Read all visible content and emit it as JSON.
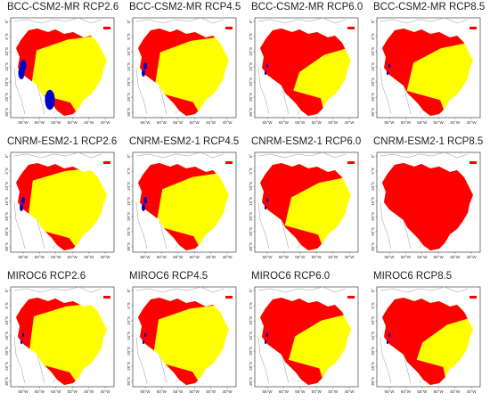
{
  "figure": {
    "panels": [
      {
        "title": "BCC-CSM2-MR RCP2.6",
        "red": 0.35,
        "blue": "high"
      },
      {
        "title": "BCC-CSM2-MR RCP4.5",
        "red": 0.38,
        "blue": "mid"
      },
      {
        "title": "BCC-CSM2-MR RCP6.0",
        "red": 0.7,
        "blue": "low"
      },
      {
        "title": "BCC-CSM2-MR RCP8.5",
        "red": 0.55,
        "blue": "low"
      },
      {
        "title": "CNRM-ESM2-1 RCP2.6",
        "red": 0.28,
        "blue": "mid"
      },
      {
        "title": "CNRM-ESM2-1 RCP4.5",
        "red": 0.42,
        "blue": "mid"
      },
      {
        "title": "CNRM-ESM2-1 RCP6.0",
        "red": 0.55,
        "blue": "low"
      },
      {
        "title": "CNRM-ESM2-1 RCP8.5",
        "red": 0.98,
        "blue": "none"
      },
      {
        "title": "MIROC6 RCP2.6",
        "red": 0.3,
        "blue": "low"
      },
      {
        "title": "MIROC6 RCP4.5",
        "red": 0.35,
        "blue": "low"
      },
      {
        "title": "MIROC6 RCP6.0",
        "red": 0.62,
        "blue": "low"
      },
      {
        "title": "MIROC6 RCP8.5",
        "red": 0.72,
        "blue": "low"
      }
    ],
    "x_ticks": [
      "65°W",
      "60°W",
      "55°W",
      "50°W",
      "45°W",
      "40°W"
    ],
    "y_ticks": [
      "0°",
      "5°S",
      "10°S",
      "15°S",
      "20°S",
      "25°S",
      "30°S"
    ],
    "colors": {
      "high_suitability": "#ffff00",
      "low_suitability": "#ff0000",
      "other_class": "#0000cc",
      "boundary": "#999999"
    }
  }
}
